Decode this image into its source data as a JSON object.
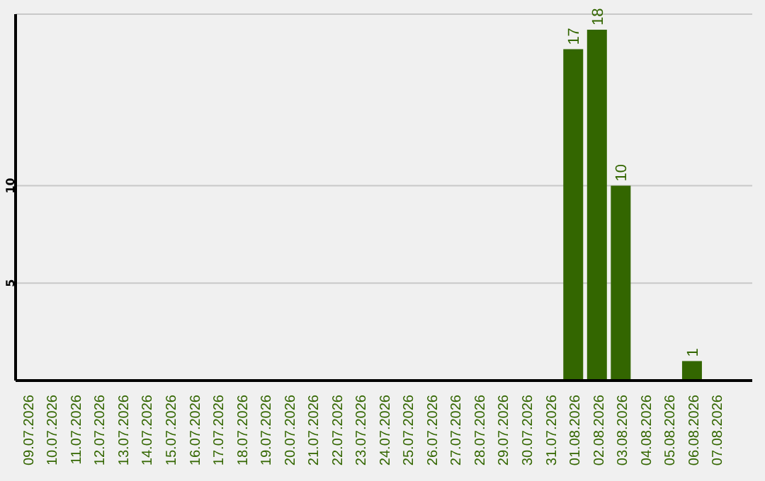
{
  "chart_data": {
    "type": "bar",
    "categories": [
      "09.07.2026",
      "10.07.2026",
      "11.07.2026",
      "12.07.2026",
      "13.07.2026",
      "14.07.2026",
      "15.07.2026",
      "16.07.2026",
      "17.07.2026",
      "18.07.2026",
      "19.07.2026",
      "20.07.2026",
      "21.07.2026",
      "22.07.2026",
      "23.07.2026",
      "24.07.2026",
      "25.07.2026",
      "26.07.2026",
      "27.07.2026",
      "28.07.2026",
      "29.07.2026",
      "30.07.2026",
      "31.07.2026",
      "01.08.2026",
      "02.08.2026",
      "03.08.2026",
      "04.08.2026",
      "05.08.2026",
      "06.08.2026",
      "07.08.2026"
    ],
    "values": [
      0,
      0,
      0,
      0,
      0,
      0,
      0,
      0,
      0,
      0,
      0,
      0,
      0,
      0,
      0,
      0,
      0,
      0,
      0,
      0,
      0,
      0,
      0,
      17,
      18,
      10,
      0,
      0,
      1,
      0
    ],
    "value_labels": [
      null,
      null,
      null,
      null,
      null,
      null,
      null,
      null,
      null,
      null,
      null,
      null,
      null,
      null,
      null,
      null,
      null,
      null,
      null,
      null,
      null,
      null,
      null,
      "17",
      "18",
      "10",
      null,
      null,
      "1",
      null
    ],
    "color": "#336600",
    "ylim": [
      0,
      18.8
    ],
    "yticks": [
      5,
      10
    ],
    "grid": "y"
  }
}
